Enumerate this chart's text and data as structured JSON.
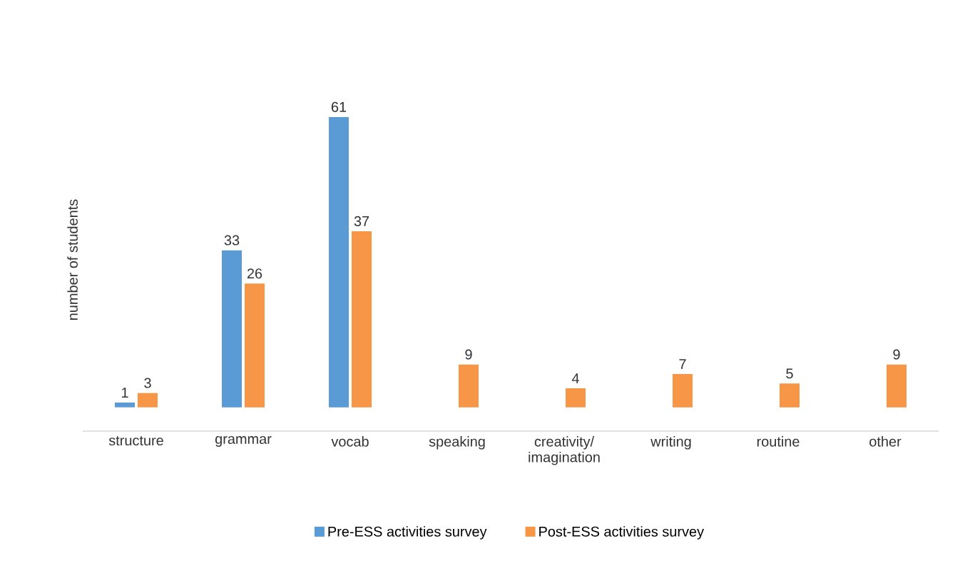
{
  "chart_data": {
    "type": "bar",
    "ylabel": "number of students",
    "categories": [
      "structure",
      "grammar",
      "vocab",
      "speaking",
      "creativity/ imagination",
      "writing",
      "routine",
      "other"
    ],
    "series": [
      {
        "name": "Pre-ESS activities survey",
        "color": "#5b9bd5",
        "values": [
          1,
          33,
          61,
          null,
          null,
          null,
          null,
          null
        ]
      },
      {
        "name": "Post-ESS activities survey",
        "color": "#f79646",
        "values": [
          3,
          26,
          37,
          9,
          4,
          7,
          5,
          9
        ]
      }
    ],
    "data_labels": true,
    "legend": "bottom"
  }
}
